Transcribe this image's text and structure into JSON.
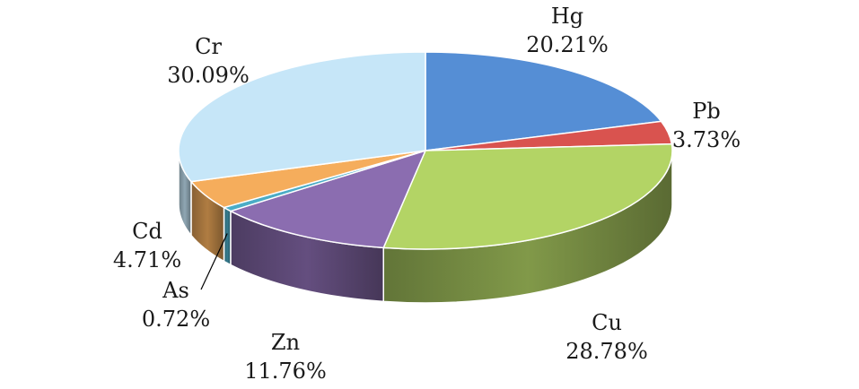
{
  "chart_data": {
    "type": "pie",
    "title": "",
    "slices": [
      {
        "name": "Hg",
        "value": 20.21,
        "label": "20.21%",
        "color": "#558ed5"
      },
      {
        "name": "Pb",
        "value": 3.73,
        "label": "3.73%",
        "color": "#d9534f"
      },
      {
        "name": "Cu",
        "value": 28.78,
        "label": "28.78%",
        "color": "#b3d465"
      },
      {
        "name": "Zn",
        "value": 11.76,
        "label": "11.76%",
        "color": "#8b6db0"
      },
      {
        "name": "As",
        "value": 0.72,
        "label": "0.72%",
        "color": "#4bacc6"
      },
      {
        "name": "Cd",
        "value": 4.71,
        "label": "4.71%",
        "color": "#f5ad5c"
      },
      {
        "name": "Cr",
        "value": 30.09,
        "label": "30.09%",
        "color": "#c6e6f8"
      }
    ]
  }
}
